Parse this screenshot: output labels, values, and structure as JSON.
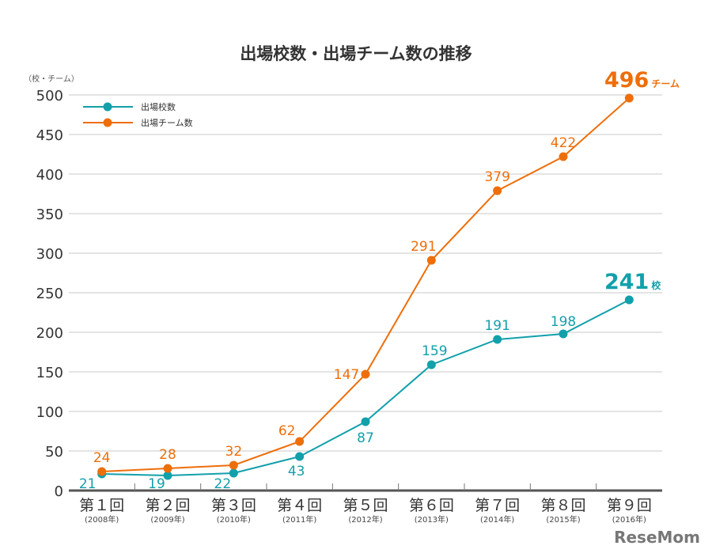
{
  "chart_data": {
    "type": "line",
    "title": "出場校数・出場チーム数の推移",
    "ylabel": "（校・チーム）",
    "ylim": [
      0,
      500
    ],
    "yticks": [
      0,
      50,
      100,
      150,
      200,
      250,
      300,
      350,
      400,
      450,
      500
    ],
    "grid": true,
    "legend_position": "top-left",
    "categories": [
      "第１回",
      "第２回",
      "第３回",
      "第４回",
      "第５回",
      "第６回",
      "第７回",
      "第８回",
      "第９回"
    ],
    "subcategories": [
      "(2008年)",
      "(2009年)",
      "(2010年)",
      "(2011年)",
      "(2012年)",
      "(2013年)",
      "(2014年)",
      "(2015年)",
      "(2016年)"
    ],
    "series": [
      {
        "name": "出場校数",
        "color": "#12a0ab",
        "values": [
          21,
          19,
          22,
          43,
          87,
          159,
          191,
          198,
          241
        ],
        "final_unit": "校"
      },
      {
        "name": "出場チーム数",
        "color": "#ee6e0a",
        "values": [
          24,
          28,
          32,
          62,
          147,
          291,
          379,
          422,
          496
        ],
        "final_unit": "チーム"
      }
    ]
  },
  "watermark": "ReseMom"
}
